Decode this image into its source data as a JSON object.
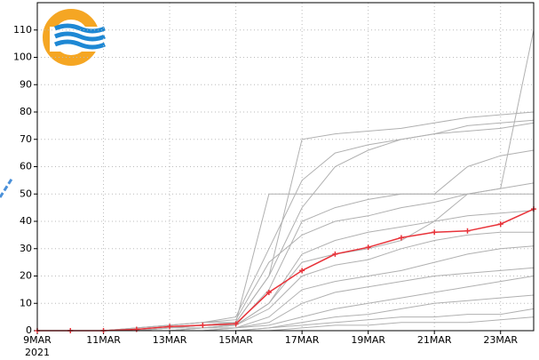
{
  "chart_data": {
    "type": "line",
    "x": [
      "2021-03-09",
      "2021-03-10",
      "2021-03-11",
      "2021-03-12",
      "2021-03-13",
      "2021-03-14",
      "2021-03-15",
      "2021-03-16",
      "2021-03-17",
      "2021-03-18",
      "2021-03-19",
      "2021-03-20",
      "2021-03-21",
      "2021-03-22",
      "2021-03-23",
      "2021-03-24"
    ],
    "xlim": [
      "2021-03-09",
      "2021-03-24"
    ],
    "xticks": [
      {
        "value": "2021-03-09",
        "label": "9MAR"
      },
      {
        "value": "2021-03-11",
        "label": "11MAR"
      },
      {
        "value": "2021-03-13",
        "label": "13MAR"
      },
      {
        "value": "2021-03-15",
        "label": "15MAR"
      },
      {
        "value": "2021-03-17",
        "label": "17MAR"
      },
      {
        "value": "2021-03-19",
        "label": "19MAR"
      },
      {
        "value": "2021-03-21",
        "label": "21MAR"
      },
      {
        "value": "2021-03-23",
        "label": "23MAR"
      }
    ],
    "year_label": "2021",
    "ylim": [
      0,
      120
    ],
    "yticks": [
      0,
      10,
      20,
      30,
      40,
      50,
      60,
      70,
      80,
      90,
      100,
      110
    ],
    "grid": true,
    "series": [
      {
        "color": "#b0b0b0",
        "values": [
          0,
          0,
          0,
          0,
          1,
          2,
          3,
          50,
          50,
          50,
          50,
          50,
          50,
          50,
          50,
          50
        ]
      },
      {
        "color": "#b0b0b0",
        "values": [
          0,
          0,
          0,
          0,
          0,
          1,
          2,
          10,
          25,
          28,
          30,
          33,
          40,
          50,
          52,
          110
        ]
      },
      {
        "color": "#b0b0b0",
        "values": [
          0,
          0,
          0,
          0,
          1,
          2,
          3,
          20,
          70,
          72,
          73,
          74,
          76,
          78,
          79,
          80
        ]
      },
      {
        "color": "#b0b0b0",
        "values": [
          0,
          0,
          0,
          1,
          2,
          3,
          5,
          30,
          55,
          65,
          68,
          70,
          72,
          75,
          76,
          77
        ]
      },
      {
        "color": "#b0b0b0",
        "values": [
          0,
          0,
          0,
          0,
          1,
          2,
          2,
          15,
          40,
          45,
          48,
          50,
          50,
          60,
          64,
          66
        ]
      },
      {
        "color": "#b0b0b0",
        "values": [
          0,
          0,
          0,
          1,
          2,
          3,
          4,
          25,
          35,
          40,
          42,
          45,
          47,
          50,
          52,
          54
        ]
      },
      {
        "color": "#b0b0b0",
        "values": [
          0,
          0,
          0,
          0,
          0,
          1,
          2,
          10,
          28,
          33,
          36,
          38,
          40,
          42,
          43,
          44
        ]
      },
      {
        "color": "#b0b0b0",
        "values": [
          0,
          0,
          0,
          0,
          1,
          1,
          2,
          8,
          20,
          24,
          26,
          30,
          33,
          35,
          36,
          36
        ]
      },
      {
        "color": "#b0b0b0",
        "values": [
          0,
          0,
          0,
          0,
          0,
          1,
          1,
          5,
          15,
          18,
          20,
          22,
          25,
          28,
          30,
          31
        ]
      },
      {
        "color": "#b0b0b0",
        "values": [
          0,
          0,
          0,
          0,
          0,
          0,
          1,
          3,
          10,
          14,
          16,
          18,
          20,
          21,
          22,
          23
        ]
      },
      {
        "color": "#b0b0b0",
        "values": [
          0,
          0,
          0,
          0,
          0,
          0,
          1,
          2,
          5,
          8,
          10,
          12,
          14,
          16,
          18,
          20
        ]
      },
      {
        "color": "#b0b0b0",
        "values": [
          0,
          0,
          0,
          0,
          0,
          0,
          0,
          1,
          3,
          5,
          6,
          8,
          10,
          11,
          12,
          13
        ]
      },
      {
        "color": "#b0b0b0",
        "values": [
          0,
          0,
          0,
          0,
          0,
          0,
          0,
          1,
          2,
          3,
          4,
          5,
          5,
          6,
          6,
          8
        ]
      },
      {
        "color": "#b0b0b0",
        "values": [
          0,
          0,
          0,
          0,
          0,
          0,
          0,
          0,
          1,
          2,
          2,
          3,
          3,
          3,
          4,
          5
        ]
      },
      {
        "color": "#b0b0b0",
        "values": [
          0,
          0,
          0,
          1,
          2,
          3,
          3,
          20,
          45,
          60,
          66,
          70,
          72,
          73,
          74,
          76
        ]
      },
      {
        "color": "#e8333a",
        "values": [
          0,
          0,
          0,
          0.5,
          1.5,
          2,
          2.5,
          14,
          22,
          28,
          30.5,
          34,
          36,
          36.5,
          39,
          44.5
        ]
      }
    ]
  }
}
